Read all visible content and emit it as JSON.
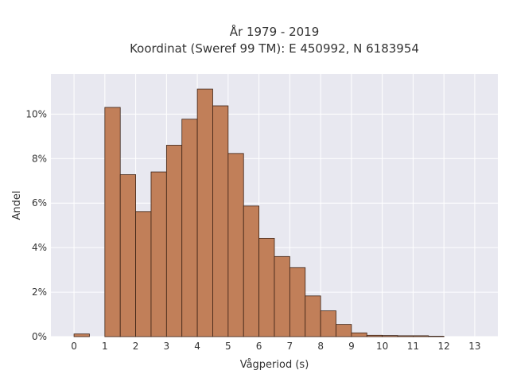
{
  "chart_data": {
    "type": "bar",
    "title_line1": "År 1979 - 2019",
    "title_line2": "Koordinat (Sweref 99 TM): E 450992, N 6183954",
    "xlabel": "Vågperiod (s)",
    "ylabel": "Andel",
    "xlim": [
      -0.75,
      13.75
    ],
    "ylim": [
      0,
      11.8
    ],
    "x_ticks": [
      0,
      1,
      2,
      3,
      4,
      5,
      6,
      7,
      8,
      9,
      10,
      11,
      12,
      13
    ],
    "y_ticks": [
      0,
      2,
      4,
      6,
      8,
      10
    ],
    "y_tick_labels": [
      "0%",
      "2%",
      "4%",
      "6%",
      "8%",
      "10%"
    ],
    "bin_width": 0.5,
    "bins_start": [
      0,
      1,
      1.5,
      2,
      2.5,
      3,
      3.5,
      4,
      4.5,
      5,
      5.5,
      6,
      6.5,
      7,
      7.5,
      8,
      8.5,
      9,
      9.5,
      10,
      10.5,
      11,
      11.5,
      12
    ],
    "values": [
      0.12,
      10.3,
      7.28,
      5.62,
      7.4,
      8.6,
      9.77,
      11.12,
      10.37,
      8.23,
      5.87,
      4.42,
      3.6,
      3.1,
      1.83,
      1.16,
      0.55,
      0.17,
      0.06,
      0.05,
      0.04,
      0.04,
      0.02,
      0
    ],
    "bar_color": "#c17f59",
    "bar_edge_color": "#3d2316",
    "plot_background": "#e8e8f0",
    "grid": true
  }
}
